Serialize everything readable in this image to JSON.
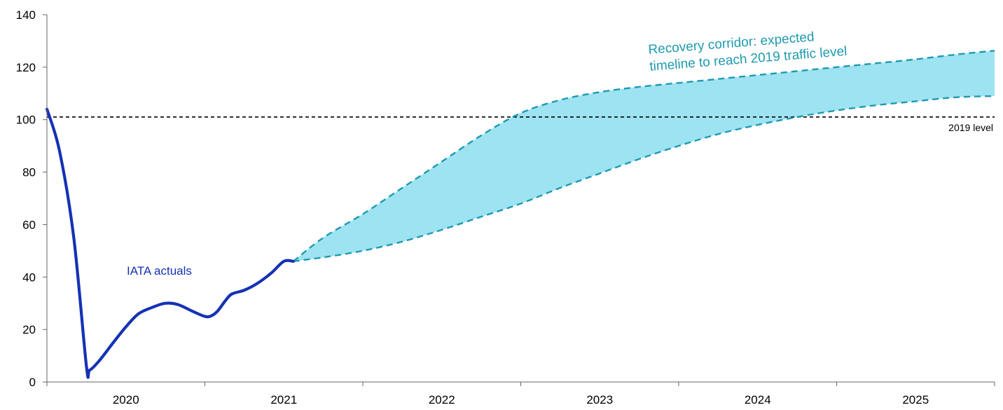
{
  "chart_data": {
    "type": "line",
    "title": "",
    "xlabel": "",
    "ylabel": "",
    "ylim": [
      0,
      140
    ],
    "yticks": [
      0,
      20,
      40,
      60,
      80,
      100,
      120,
      140
    ],
    "xlim": [
      2019.5,
      2025.5
    ],
    "x_categories": [
      "2020",
      "2021",
      "2022",
      "2023",
      "2024",
      "2025"
    ],
    "grid": false,
    "legend": "none",
    "series": [
      {
        "name": "IATA actuals",
        "style": "solid",
        "color": "#1432b4",
        "x": [
          2019.5,
          2019.58,
          2019.67,
          2019.75,
          2019.77,
          2019.83,
          2019.92,
          2020.0,
          2020.08,
          2020.17,
          2020.25,
          2020.33,
          2020.42,
          2020.5,
          2020.54,
          2020.58,
          2020.63,
          2020.67,
          2020.75,
          2020.83,
          2020.92,
          2021.0,
          2021.06
        ],
        "y": [
          104,
          88,
          55,
          6,
          4.5,
          8,
          15,
          21,
          26,
          28.5,
          30,
          29.5,
          27,
          25,
          25.2,
          27,
          31,
          33.5,
          35,
          37.5,
          41.5,
          46,
          46
        ]
      },
      {
        "name": "Recovery corridor upper",
        "style": "dashed",
        "color": "#1e9ab0",
        "x": [
          2021.06,
          2021.25,
          2021.5,
          2021.75,
          2022.0,
          2022.25,
          2022.5,
          2022.75,
          2023.0,
          2023.25,
          2023.5,
          2023.75,
          2024.0,
          2024.25,
          2024.5,
          2024.75,
          2025.0,
          2025.25,
          2025.5
        ],
        "y": [
          46,
          55,
          64,
          74,
          84,
          94,
          102.5,
          107.5,
          110.5,
          112.5,
          114,
          115.5,
          117,
          118.5,
          120,
          121.5,
          123,
          124.8,
          126.3
        ]
      },
      {
        "name": "Recovery corridor lower",
        "style": "dashed",
        "color": "#1e9ab0",
        "x": [
          2021.06,
          2021.25,
          2021.5,
          2021.75,
          2022.0,
          2022.25,
          2022.5,
          2022.75,
          2023.0,
          2023.25,
          2023.5,
          2023.75,
          2024.0,
          2024.25,
          2024.5,
          2024.75,
          2025.0,
          2025.25,
          2025.5
        ],
        "y": [
          46,
          47.5,
          50,
          53.5,
          58,
          63,
          68,
          74,
          79.5,
          85,
          90,
          94.5,
          98,
          101,
          103.5,
          105.5,
          107,
          108.5,
          109
        ]
      }
    ],
    "reference_line": {
      "y": 101,
      "label": "2019 level",
      "style": "dashed",
      "color": "#000000"
    },
    "corridor_fill": "#9de3f2",
    "annotations": {
      "actuals": {
        "text": "IATA actuals",
        "color": "#1432b4"
      },
      "corridor": {
        "lines": [
          "Recovery corridor: expected",
          "timeline to reach 2019 traffic level"
        ],
        "color": "#1e9ab0"
      }
    }
  }
}
